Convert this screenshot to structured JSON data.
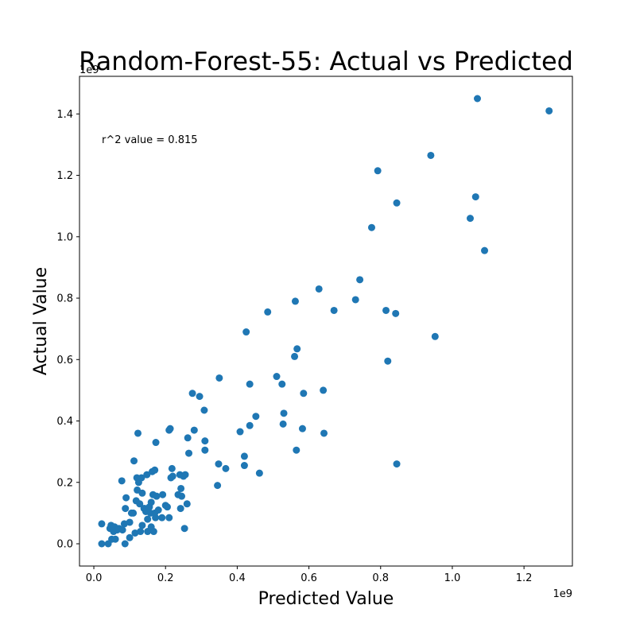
{
  "chart_data": {
    "type": "scatter",
    "title": "Random-Forest-55: Actual vs Predicted",
    "xlabel": "Predicted Value",
    "ylabel": "Actual Value",
    "x_multiplier": "1e9",
    "y_multiplier": "1e9",
    "xlim": [
      -0.04,
      1.335
    ],
    "ylim": [
      -0.0725,
      1.5225
    ],
    "xticks": [
      0.0,
      0.2,
      0.4,
      0.6,
      0.8,
      1.0,
      1.2
    ],
    "xtick_labels": [
      "0.0",
      "0.2",
      "0.4",
      "0.6",
      "0.8",
      "1.0",
      "1.2"
    ],
    "yticks": [
      0.0,
      0.2,
      0.4,
      0.6,
      0.8,
      1.0,
      1.2,
      1.4
    ],
    "ytick_labels": [
      "0.0",
      "0.2",
      "0.4",
      "0.6",
      "0.8",
      "1.0",
      "1.2",
      "1.4"
    ],
    "annotation": "r^2 value = 0.815",
    "grid": false,
    "marker_color": "#1f77b4",
    "points": [
      [
        0.022,
        0.0
      ],
      [
        0.022,
        0.065
      ],
      [
        0.04,
        0.0
      ],
      [
        0.045,
        0.05
      ],
      [
        0.048,
        0.06
      ],
      [
        0.05,
        0.015
      ],
      [
        0.055,
        0.04
      ],
      [
        0.058,
        0.055
      ],
      [
        0.06,
        0.015
      ],
      [
        0.065,
        0.045
      ],
      [
        0.07,
        0.05
      ],
      [
        0.078,
        0.205
      ],
      [
        0.08,
        0.045
      ],
      [
        0.085,
        0.065
      ],
      [
        0.087,
        0.0
      ],
      [
        0.088,
        0.115
      ],
      [
        0.09,
        0.15
      ],
      [
        0.1,
        0.02
      ],
      [
        0.1,
        0.07
      ],
      [
        0.105,
        0.1
      ],
      [
        0.11,
        0.1
      ],
      [
        0.112,
        0.27
      ],
      [
        0.115,
        0.035
      ],
      [
        0.118,
        0.14
      ],
      [
        0.12,
        0.215
      ],
      [
        0.121,
        0.175
      ],
      [
        0.123,
        0.36
      ],
      [
        0.125,
        0.2
      ],
      [
        0.128,
        0.13
      ],
      [
        0.13,
        0.04
      ],
      [
        0.133,
        0.215
      ],
      [
        0.135,
        0.165
      ],
      [
        0.135,
        0.06
      ],
      [
        0.14,
        0.115
      ],
      [
        0.142,
        0.115
      ],
      [
        0.145,
        0.105
      ],
      [
        0.148,
        0.225
      ],
      [
        0.15,
        0.04
      ],
      [
        0.15,
        0.08
      ],
      [
        0.155,
        0.12
      ],
      [
        0.158,
        0.1
      ],
      [
        0.16,
        0.135
      ],
      [
        0.16,
        0.055
      ],
      [
        0.163,
        0.235
      ],
      [
        0.165,
        0.16
      ],
      [
        0.167,
        0.04
      ],
      [
        0.17,
        0.1
      ],
      [
        0.17,
        0.24
      ],
      [
        0.172,
        0.085
      ],
      [
        0.173,
        0.33
      ],
      [
        0.175,
        0.155
      ],
      [
        0.18,
        0.11
      ],
      [
        0.19,
        0.085
      ],
      [
        0.192,
        0.16
      ],
      [
        0.2,
        0.125
      ],
      [
        0.205,
        0.12
      ],
      [
        0.21,
        0.085
      ],
      [
        0.21,
        0.37
      ],
      [
        0.213,
        0.375
      ],
      [
        0.215,
        0.215
      ],
      [
        0.218,
        0.245
      ],
      [
        0.22,
        0.22
      ],
      [
        0.235,
        0.16
      ],
      [
        0.24,
        0.225
      ],
      [
        0.242,
        0.115
      ],
      [
        0.243,
        0.18
      ],
      [
        0.245,
        0.155
      ],
      [
        0.25,
        0.22
      ],
      [
        0.253,
        0.05
      ],
      [
        0.255,
        0.225
      ],
      [
        0.26,
        0.13
      ],
      [
        0.262,
        0.345
      ],
      [
        0.265,
        0.295
      ],
      [
        0.275,
        0.49
      ],
      [
        0.28,
        0.37
      ],
      [
        0.295,
        0.48
      ],
      [
        0.308,
        0.435
      ],
      [
        0.31,
        0.335
      ],
      [
        0.31,
        0.305
      ],
      [
        0.345,
        0.19
      ],
      [
        0.348,
        0.26
      ],
      [
        0.35,
        0.54
      ],
      [
        0.368,
        0.245
      ],
      [
        0.408,
        0.365
      ],
      [
        0.42,
        0.255
      ],
      [
        0.42,
        0.285
      ],
      [
        0.425,
        0.69
      ],
      [
        0.435,
        0.385
      ],
      [
        0.435,
        0.52
      ],
      [
        0.452,
        0.415
      ],
      [
        0.462,
        0.23
      ],
      [
        0.485,
        0.755
      ],
      [
        0.51,
        0.545
      ],
      [
        0.525,
        0.52
      ],
      [
        0.528,
        0.39
      ],
      [
        0.53,
        0.425
      ],
      [
        0.56,
        0.61
      ],
      [
        0.562,
        0.79
      ],
      [
        0.565,
        0.305
      ],
      [
        0.567,
        0.635
      ],
      [
        0.582,
        0.375
      ],
      [
        0.585,
        0.49
      ],
      [
        0.628,
        0.83
      ],
      [
        0.64,
        0.5
      ],
      [
        0.642,
        0.36
      ],
      [
        0.67,
        0.76
      ],
      [
        0.73,
        0.795
      ],
      [
        0.742,
        0.86
      ],
      [
        0.775,
        1.03
      ],
      [
        0.792,
        1.215
      ],
      [
        0.815,
        0.76
      ],
      [
        0.82,
        0.595
      ],
      [
        0.842,
        0.75
      ],
      [
        0.845,
        0.26
      ],
      [
        0.845,
        1.11
      ],
      [
        0.94,
        1.265
      ],
      [
        0.952,
        0.675
      ],
      [
        1.05,
        1.06
      ],
      [
        1.065,
        1.13
      ],
      [
        1.07,
        1.45
      ],
      [
        1.09,
        0.955
      ],
      [
        1.27,
        1.41
      ]
    ]
  }
}
